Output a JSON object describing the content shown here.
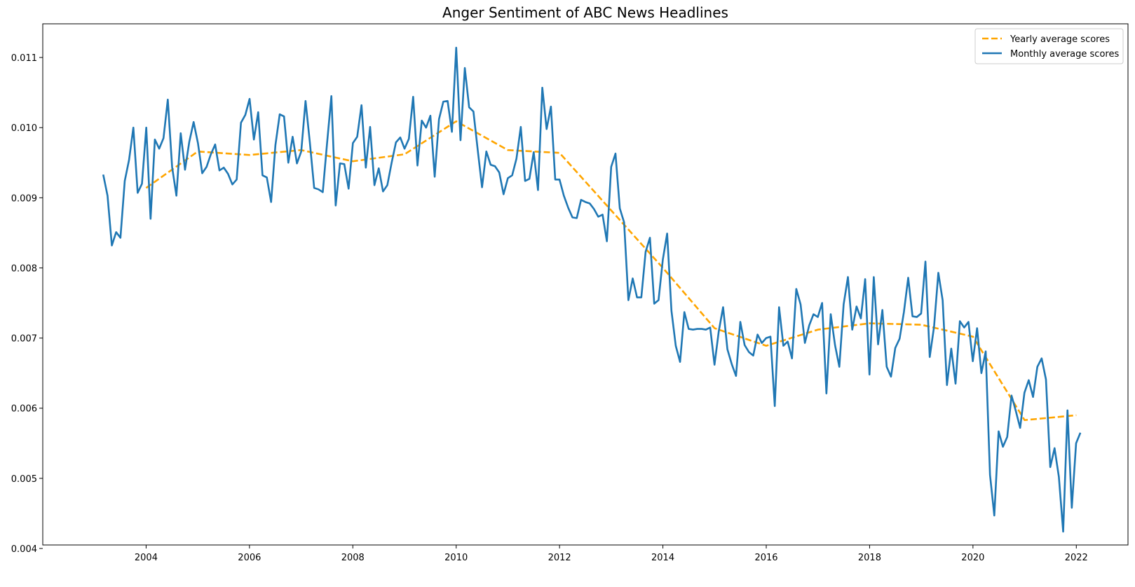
{
  "chart_data": {
    "type": "line",
    "title": "Anger Sentiment of ABC News Headlines",
    "xlabel": "",
    "ylabel": "",
    "xlim": [
      2002.0,
      2023.0
    ],
    "ylim": [
      0.00405,
      0.01148
    ],
    "x_ticks": [
      2004,
      2006,
      2008,
      2010,
      2012,
      2014,
      2016,
      2018,
      2020,
      2022
    ],
    "x_tick_labels": [
      "2004",
      "2006",
      "2008",
      "2010",
      "2012",
      "2014",
      "2016",
      "2018",
      "2020",
      "2022"
    ],
    "y_ticks": [
      0.004,
      0.005,
      0.006,
      0.007,
      0.008,
      0.009,
      0.01,
      0.011
    ],
    "y_tick_labels": [
      "0.004",
      "0.005",
      "0.006",
      "0.007",
      "0.008",
      "0.009",
      "0.010",
      "0.011"
    ],
    "legend": {
      "position": "top-right",
      "entries": [
        "Yearly average scores",
        "Monthly average scores"
      ]
    },
    "series": [
      {
        "name": "Yearly average scores",
        "color": "#ffa500",
        "style": "dashed",
        "x": [
          2004,
          2005,
          2006,
          2007,
          2008,
          2009,
          2010,
          2011,
          2012,
          2013,
          2014,
          2015,
          2016,
          2017,
          2018,
          2019,
          2020,
          2021,
          2022
        ],
        "y": [
          0.00914,
          0.00966,
          0.00961,
          0.00968,
          0.00952,
          0.00962,
          0.01009,
          0.00968,
          0.00964,
          0.00882,
          0.008,
          0.00714,
          0.00689,
          0.00712,
          0.00721,
          0.00719,
          0.00702,
          0.00583,
          0.0059
        ]
      },
      {
        "name": "Monthly average scores",
        "color": "#1f77b4",
        "style": "solid",
        "start_year": 2003.17,
        "step_years": 0.0833,
        "y": [
          0.00933,
          0.00903,
          0.00832,
          0.00851,
          0.00843,
          0.00924,
          0.00954,
          0.01,
          0.00907,
          0.0092,
          0.01,
          0.0087,
          0.00983,
          0.0097,
          0.00985,
          0.0104,
          0.00944,
          0.00903,
          0.00992,
          0.0094,
          0.0098,
          0.01008,
          0.00978,
          0.00935,
          0.00944,
          0.00962,
          0.00976,
          0.00939,
          0.00943,
          0.00934,
          0.00919,
          0.00926,
          0.01007,
          0.01018,
          0.01041,
          0.00983,
          0.01022,
          0.00932,
          0.00929,
          0.00894,
          0.00975,
          0.01019,
          0.01016,
          0.0095,
          0.00987,
          0.00949,
          0.00966,
          0.01038,
          0.00979,
          0.00914,
          0.00912,
          0.00908,
          0.00978,
          0.01045,
          0.00889,
          0.00949,
          0.00948,
          0.00913,
          0.00978,
          0.00987,
          0.01032,
          0.00943,
          0.01001,
          0.00918,
          0.00942,
          0.00909,
          0.00918,
          0.0095,
          0.00979,
          0.00986,
          0.0097,
          0.00984,
          0.01044,
          0.00946,
          0.0101,
          0.01,
          0.01017,
          0.0093,
          0.01012,
          0.01037,
          0.01038,
          0.00994,
          0.01114,
          0.00982,
          0.01085,
          0.01029,
          0.01023,
          0.00968,
          0.00915,
          0.00966,
          0.00947,
          0.00945,
          0.00936,
          0.00905,
          0.00928,
          0.00932,
          0.00956,
          0.01001,
          0.00924,
          0.00927,
          0.00965,
          0.00911,
          0.01057,
          0.00998,
          0.0103,
          0.00926,
          0.00926,
          0.00903,
          0.00886,
          0.00872,
          0.00871,
          0.00897,
          0.00894,
          0.00892,
          0.00884,
          0.00873,
          0.00876,
          0.00838,
          0.00944,
          0.00963,
          0.00885,
          0.00865,
          0.00754,
          0.00785,
          0.00758,
          0.00758,
          0.00823,
          0.00843,
          0.00749,
          0.00754,
          0.00812,
          0.00849,
          0.00739,
          0.00689,
          0.00666,
          0.00737,
          0.00713,
          0.00712,
          0.00713,
          0.00713,
          0.00712,
          0.00715,
          0.00662,
          0.0071,
          0.00744,
          0.00684,
          0.00663,
          0.00646,
          0.00723,
          0.0069,
          0.0068,
          0.00675,
          0.00705,
          0.00693,
          0.007,
          0.00702,
          0.00603,
          0.00744,
          0.00689,
          0.00695,
          0.00671,
          0.0077,
          0.00748,
          0.00693,
          0.00718,
          0.00734,
          0.0073,
          0.0075,
          0.00621,
          0.00734,
          0.0069,
          0.00659,
          0.00748,
          0.00787,
          0.00712,
          0.00745,
          0.00728,
          0.00784,
          0.00648,
          0.00787,
          0.00691,
          0.0074,
          0.00659,
          0.00645,
          0.00686,
          0.00699,
          0.00737,
          0.00786,
          0.00731,
          0.0073,
          0.00735,
          0.00809,
          0.00673,
          0.00716,
          0.00793,
          0.00754,
          0.00633,
          0.00685,
          0.00635,
          0.00724,
          0.00715,
          0.00723,
          0.00667,
          0.00714,
          0.0065,
          0.00681,
          0.00505,
          0.00447,
          0.00567,
          0.00545,
          0.00559,
          0.00618,
          0.00596,
          0.00572,
          0.00622,
          0.0064,
          0.00616,
          0.00659,
          0.00671,
          0.00641,
          0.00516,
          0.00543,
          0.00502,
          0.00424,
          0.00597,
          0.00458,
          0.0055,
          0.00565
        ]
      }
    ]
  }
}
